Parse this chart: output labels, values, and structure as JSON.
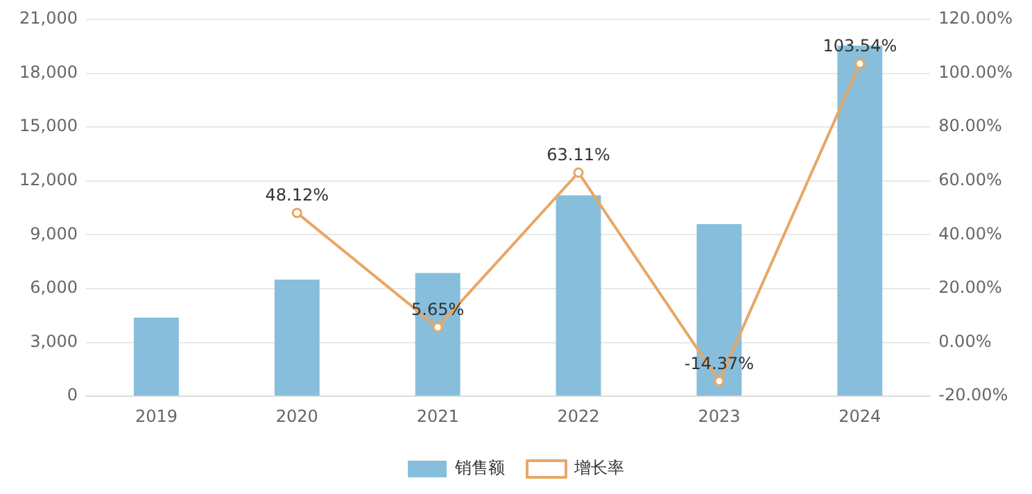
{
  "chart_data": {
    "type": "bar",
    "categories": [
      "2019",
      "2020",
      "2021",
      "2022",
      "2023",
      "2024"
    ],
    "series": [
      {
        "name": "销售额",
        "color": "#87bedb",
        "values": [
          4390,
          6500,
          6870,
          11200,
          9600,
          19540
        ]
      },
      {
        "name": "增长率",
        "type": "line",
        "axis": "y2",
        "color": "#e8a765",
        "marker": "circle",
        "values": [
          null,
          48.12,
          5.65,
          63.11,
          -14.37,
          103.54
        ],
        "value_labels": [
          null,
          "48.12%",
          "5.65%",
          "63.11%",
          "-14.37%",
          "103.54%"
        ]
      }
    ],
    "ylim": [
      0,
      21000
    ],
    "yticks": [
      {
        "value": 0,
        "label": "0"
      },
      {
        "value": 3000,
        "label": "3,000"
      },
      {
        "value": 6000,
        "label": "6,000"
      },
      {
        "value": 9000,
        "label": "9,000"
      },
      {
        "value": 12000,
        "label": "12,000"
      },
      {
        "value": 15000,
        "label": "15,000"
      },
      {
        "value": 18000,
        "label": "18,000"
      },
      {
        "value": 21000,
        "label": "21,000"
      }
    ],
    "y2lim": [
      -20,
      120
    ],
    "y2ticks": [
      {
        "value": -20,
        "label": "-20.00%"
      },
      {
        "value": 0,
        "label": "0.00%"
      },
      {
        "value": 20,
        "label": "20.00%"
      },
      {
        "value": 40,
        "label": "40.00%"
      },
      {
        "value": 60,
        "label": "60.00%"
      },
      {
        "value": 80,
        "label": "80.00%"
      },
      {
        "value": 100,
        "label": "100.00%"
      },
      {
        "value": 120,
        "label": "120.00%"
      }
    ],
    "grid": "y",
    "legend": "bottom"
  }
}
